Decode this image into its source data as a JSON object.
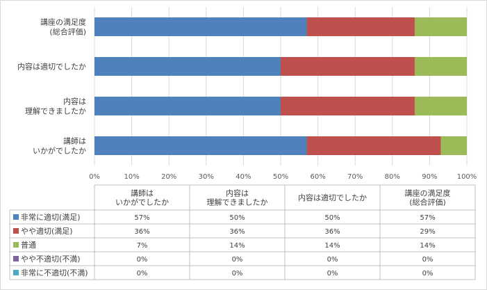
{
  "chart_data": {
    "type": "bar",
    "stacked": true,
    "percent": true,
    "orientation": "horizontal",
    "categories": [
      [
        "講師は",
        "いかがでしたか"
      ],
      [
        "内容は",
        "理解できましたか"
      ],
      [
        "内容は適切でしたか"
      ],
      [
        "講座の満足度",
        "(総合評価)"
      ]
    ],
    "series": [
      {
        "name": "非常に適切(満足)",
        "values": [
          57,
          50,
          50,
          57
        ],
        "color": "#4f81bd",
        "labels": [
          "57%",
          "50%",
          "50%",
          "57%"
        ]
      },
      {
        "name": "やや適切(満足)",
        "values": [
          36,
          36,
          36,
          29
        ],
        "color": "#c0504d",
        "labels": [
          "36%",
          "36%",
          "36%",
          "29%"
        ]
      },
      {
        "name": "普通",
        "values": [
          7,
          14,
          14,
          14
        ],
        "color": "#9bbb59",
        "labels": [
          "7%",
          "14%",
          "14%",
          "14%"
        ]
      },
      {
        "name": "やや不適切(不満)",
        "values": [
          0,
          0,
          0,
          0
        ],
        "color": "#8064a2",
        "labels": [
          "0%",
          "0%",
          "0%",
          "0%"
        ]
      },
      {
        "name": "非常に不適切(不満)",
        "values": [
          0,
          0,
          0,
          0
        ],
        "color": "#4bacc6",
        "labels": [
          "0%",
          "0%",
          "0%",
          "0%"
        ]
      }
    ],
    "xlim": [
      0,
      100
    ],
    "xticks": [
      "0%",
      "10%",
      "20%",
      "30%",
      "40%",
      "50%",
      "60%",
      "70%",
      "80%",
      "90%",
      "100%"
    ],
    "grid": true,
    "data_table": true
  }
}
